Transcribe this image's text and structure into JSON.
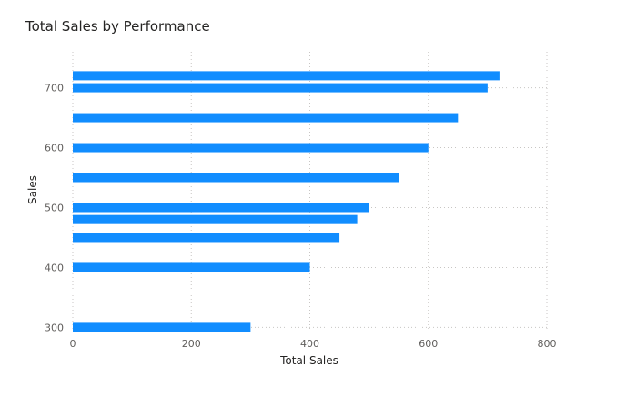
{
  "chart_data": {
    "type": "bar",
    "orientation": "horizontal",
    "title": "Total Sales by Performance",
    "xlabel": "Total Sales",
    "ylabel": "Sales",
    "xlim": [
      0,
      800
    ],
    "ylim": [
      290,
      760
    ],
    "x_ticks": [
      0,
      200,
      400,
      600,
      800
    ],
    "y_ticks": [
      300,
      400,
      500,
      600,
      700
    ],
    "grid": true,
    "legend": "none",
    "bar_color": "#118DFF",
    "points": [
      {
        "sales": 720,
        "total_sales": 720
      },
      {
        "sales": 700,
        "total_sales": 700
      },
      {
        "sales": 650,
        "total_sales": 650
      },
      {
        "sales": 600,
        "total_sales": 600
      },
      {
        "sales": 550,
        "total_sales": 550
      },
      {
        "sales": 500,
        "total_sales": 500
      },
      {
        "sales": 480,
        "total_sales": 480
      },
      {
        "sales": 450,
        "total_sales": 450
      },
      {
        "sales": 400,
        "total_sales": 400
      },
      {
        "sales": 300,
        "total_sales": 300
      }
    ]
  }
}
